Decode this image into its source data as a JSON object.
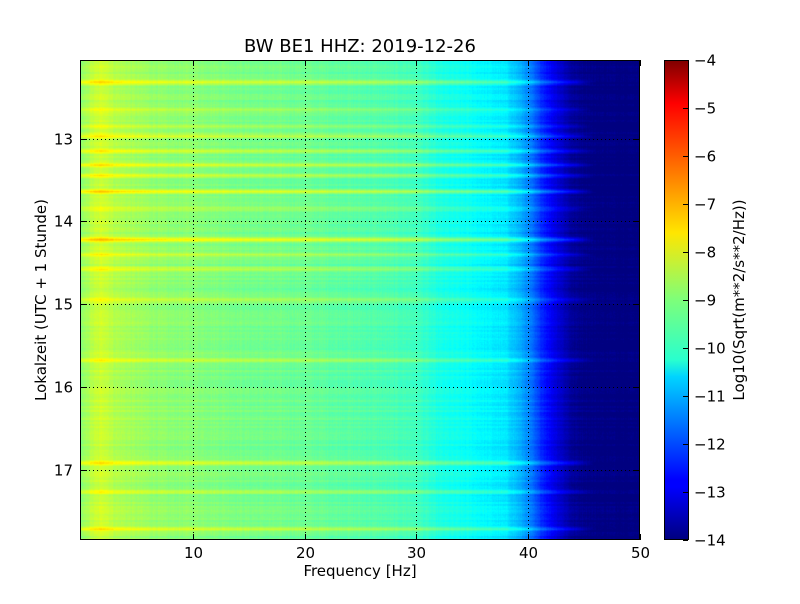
{
  "chart_data": {
    "type": "heatmap",
    "title": "BW BE1 HHZ: 2019-12-26",
    "xlabel": "Frequency [Hz]",
    "ylabel": "Lokalzeit (UTC + 1 Stunde)",
    "xlim": [
      0,
      50
    ],
    "ylim": [
      12.05,
      17.85
    ],
    "y_inverted": true,
    "x_ticks": [
      10,
      20,
      30,
      40,
      50
    ],
    "y_ticks": [
      13,
      14,
      15,
      16,
      17
    ],
    "grid": true,
    "colormap": "jet",
    "colorbar": {
      "label": "Log10(Sqrt(m**2/s**2/Hz))",
      "vmin": -14,
      "vmax": -4,
      "ticks": [
        -4,
        -5,
        -6,
        -7,
        -8,
        -9,
        -10,
        -11,
        -12,
        -13,
        -14
      ]
    },
    "frequency_profile_hz": [
      0,
      1,
      2,
      3,
      5,
      8,
      10,
      15,
      20,
      25,
      30,
      31,
      32,
      35,
      38,
      39,
      40,
      41,
      42,
      43,
      44,
      46,
      50
    ],
    "frequency_profile_log10": [
      -8.9,
      -8.4,
      -8.2,
      -8.5,
      -8.7,
      -8.9,
      -8.9,
      -9.1,
      -9.2,
      -9.4,
      -9.6,
      -9.8,
      -10.0,
      -10.2,
      -10.5,
      -10.9,
      -11.4,
      -12.2,
      -12.8,
      -13.3,
      -13.8,
      -14.0,
      -14.0
    ],
    "events": [
      {
        "time": 12.32,
        "log10_boost": 1.0
      },
      {
        "time": 12.65,
        "log10_boost": 0.6
      },
      {
        "time": 12.85,
        "log10_boost": 0.6
      },
      {
        "time": 12.97,
        "log10_boost": 0.8
      },
      {
        "time": 13.15,
        "log10_boost": 0.7
      },
      {
        "time": 13.32,
        "log10_boost": 0.9
      },
      {
        "time": 13.45,
        "log10_boost": 0.7
      },
      {
        "time": 13.64,
        "log10_boost": 1.2
      },
      {
        "time": 13.85,
        "log10_boost": 0.6
      },
      {
        "time": 14.22,
        "log10_boost": 1.3
      },
      {
        "time": 14.4,
        "log10_boost": 0.7
      },
      {
        "time": 14.58,
        "log10_boost": 0.8
      },
      {
        "time": 14.95,
        "log10_boost": 0.5
      },
      {
        "time": 15.68,
        "log10_boost": 0.6
      },
      {
        "time": 16.92,
        "log10_boost": 1.0
      },
      {
        "time": 17.27,
        "log10_boost": 0.5
      },
      {
        "time": 17.72,
        "log10_boost": 0.9
      }
    ]
  }
}
